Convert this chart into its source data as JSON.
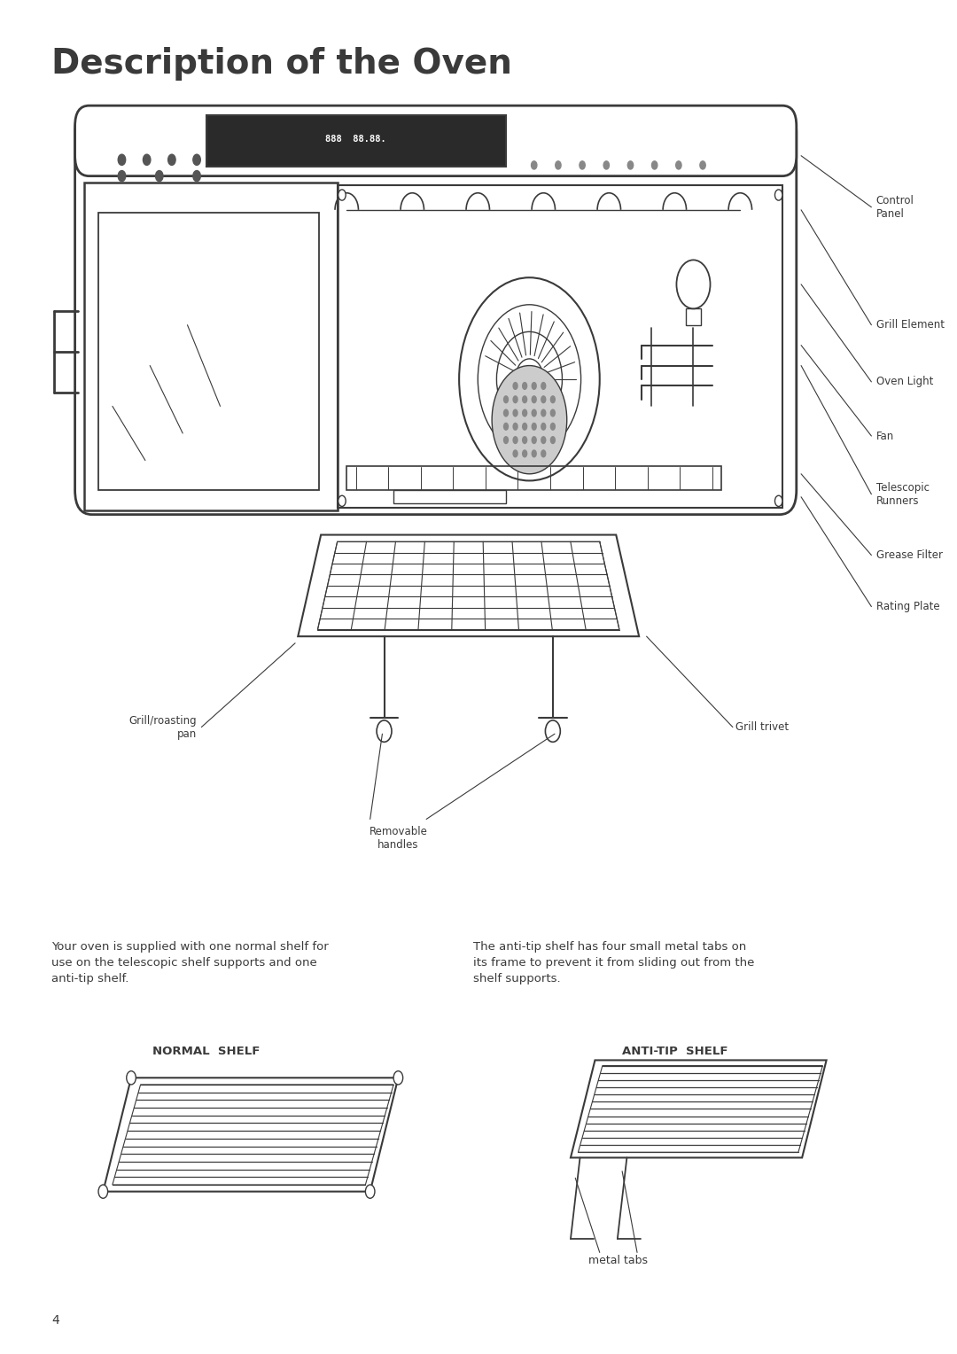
{
  "title": "Description of the Oven",
  "title_fontsize": 28,
  "title_fontweight": "bold",
  "title_color": "#3a3a3a",
  "bg_color": "#ffffff",
  "body_text_left": "Your oven is supplied with one normal shelf for\nuse on the telescopic shelf supports and one\nanti-tip shelf.",
  "body_text_right": "The anti-tip shelf has four small metal tabs on\nits frame to prevent it from sliding out from the\nshelf supports.",
  "normal_shelf_label": "NORMAL  SHELF",
  "anti_tip_label": "ANTI-TIP  SHELF",
  "metal_tabs_label": "metal tabs",
  "page_number": "4",
  "line_color": "#3a3a3a",
  "text_color": "#3a3a3a"
}
